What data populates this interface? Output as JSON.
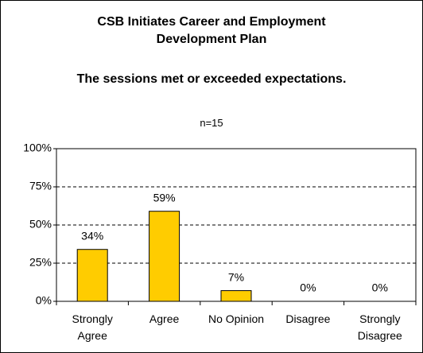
{
  "chart_data": {
    "type": "bar",
    "title": "CSB Initiates Career and Employment Development Plan",
    "subtitle": "The sessions met or exceeded expectations.",
    "annotation": "n=15",
    "categories": [
      "Strongly Agree",
      "Agree",
      "No Opinion",
      "Disagree",
      "Strongly Disagree"
    ],
    "values": [
      34,
      59,
      7,
      0,
      0
    ],
    "value_labels": [
      "34%",
      "59%",
      "7%",
      "0%",
      "0%"
    ],
    "color": "#ffcc00",
    "ylim": [
      0,
      100
    ],
    "yticks": [
      {
        "value": 0,
        "label": "0%"
      },
      {
        "value": 25,
        "label": "25%"
      },
      {
        "value": 50,
        "label": "50%"
      },
      {
        "value": 75,
        "label": "75%"
      },
      {
        "value": 100,
        "label": "100%"
      }
    ],
    "grid": true
  }
}
